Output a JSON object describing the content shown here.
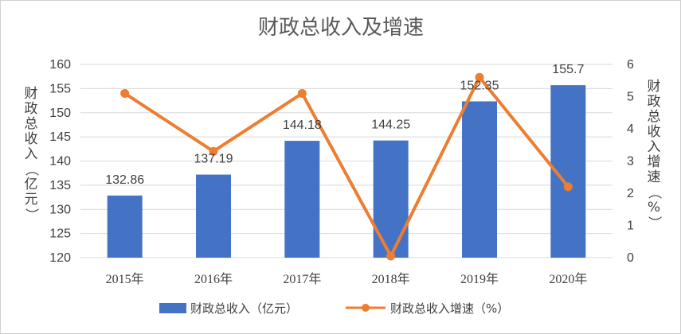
{
  "chart_data": {
    "type": "bar",
    "title": "财政总收入及增速",
    "categories": [
      "2015年",
      "2016年",
      "2017年",
      "2018年",
      "2019年",
      "2020年"
    ],
    "ylabel": "财政总收入（亿元）",
    "y2label": "财政总收入增速（%）",
    "ylim": [
      120,
      160
    ],
    "y_ticks": [
      120,
      125,
      130,
      135,
      140,
      145,
      150,
      155,
      160
    ],
    "y2lim": [
      0,
      6
    ],
    "y2_ticks": [
      0,
      1,
      2,
      3,
      4,
      5,
      6
    ],
    "grid": true,
    "legend_position": "bottom",
    "series": [
      {
        "name": "财政总收入（亿元）",
        "type": "bar",
        "axis": "left",
        "color": "#4472C4",
        "values": [
          132.86,
          137.19,
          144.18,
          144.25,
          152.35,
          155.7
        ],
        "labels": [
          "132.86",
          "137.19",
          "144.18",
          "144.25",
          "152.35",
          "155.7"
        ]
      },
      {
        "name": "财政总收入增速（%）",
        "type": "line",
        "axis": "right",
        "color": "#ED7D31",
        "values": [
          5.1,
          3.3,
          5.1,
          0.05,
          5.6,
          2.2
        ]
      }
    ]
  }
}
